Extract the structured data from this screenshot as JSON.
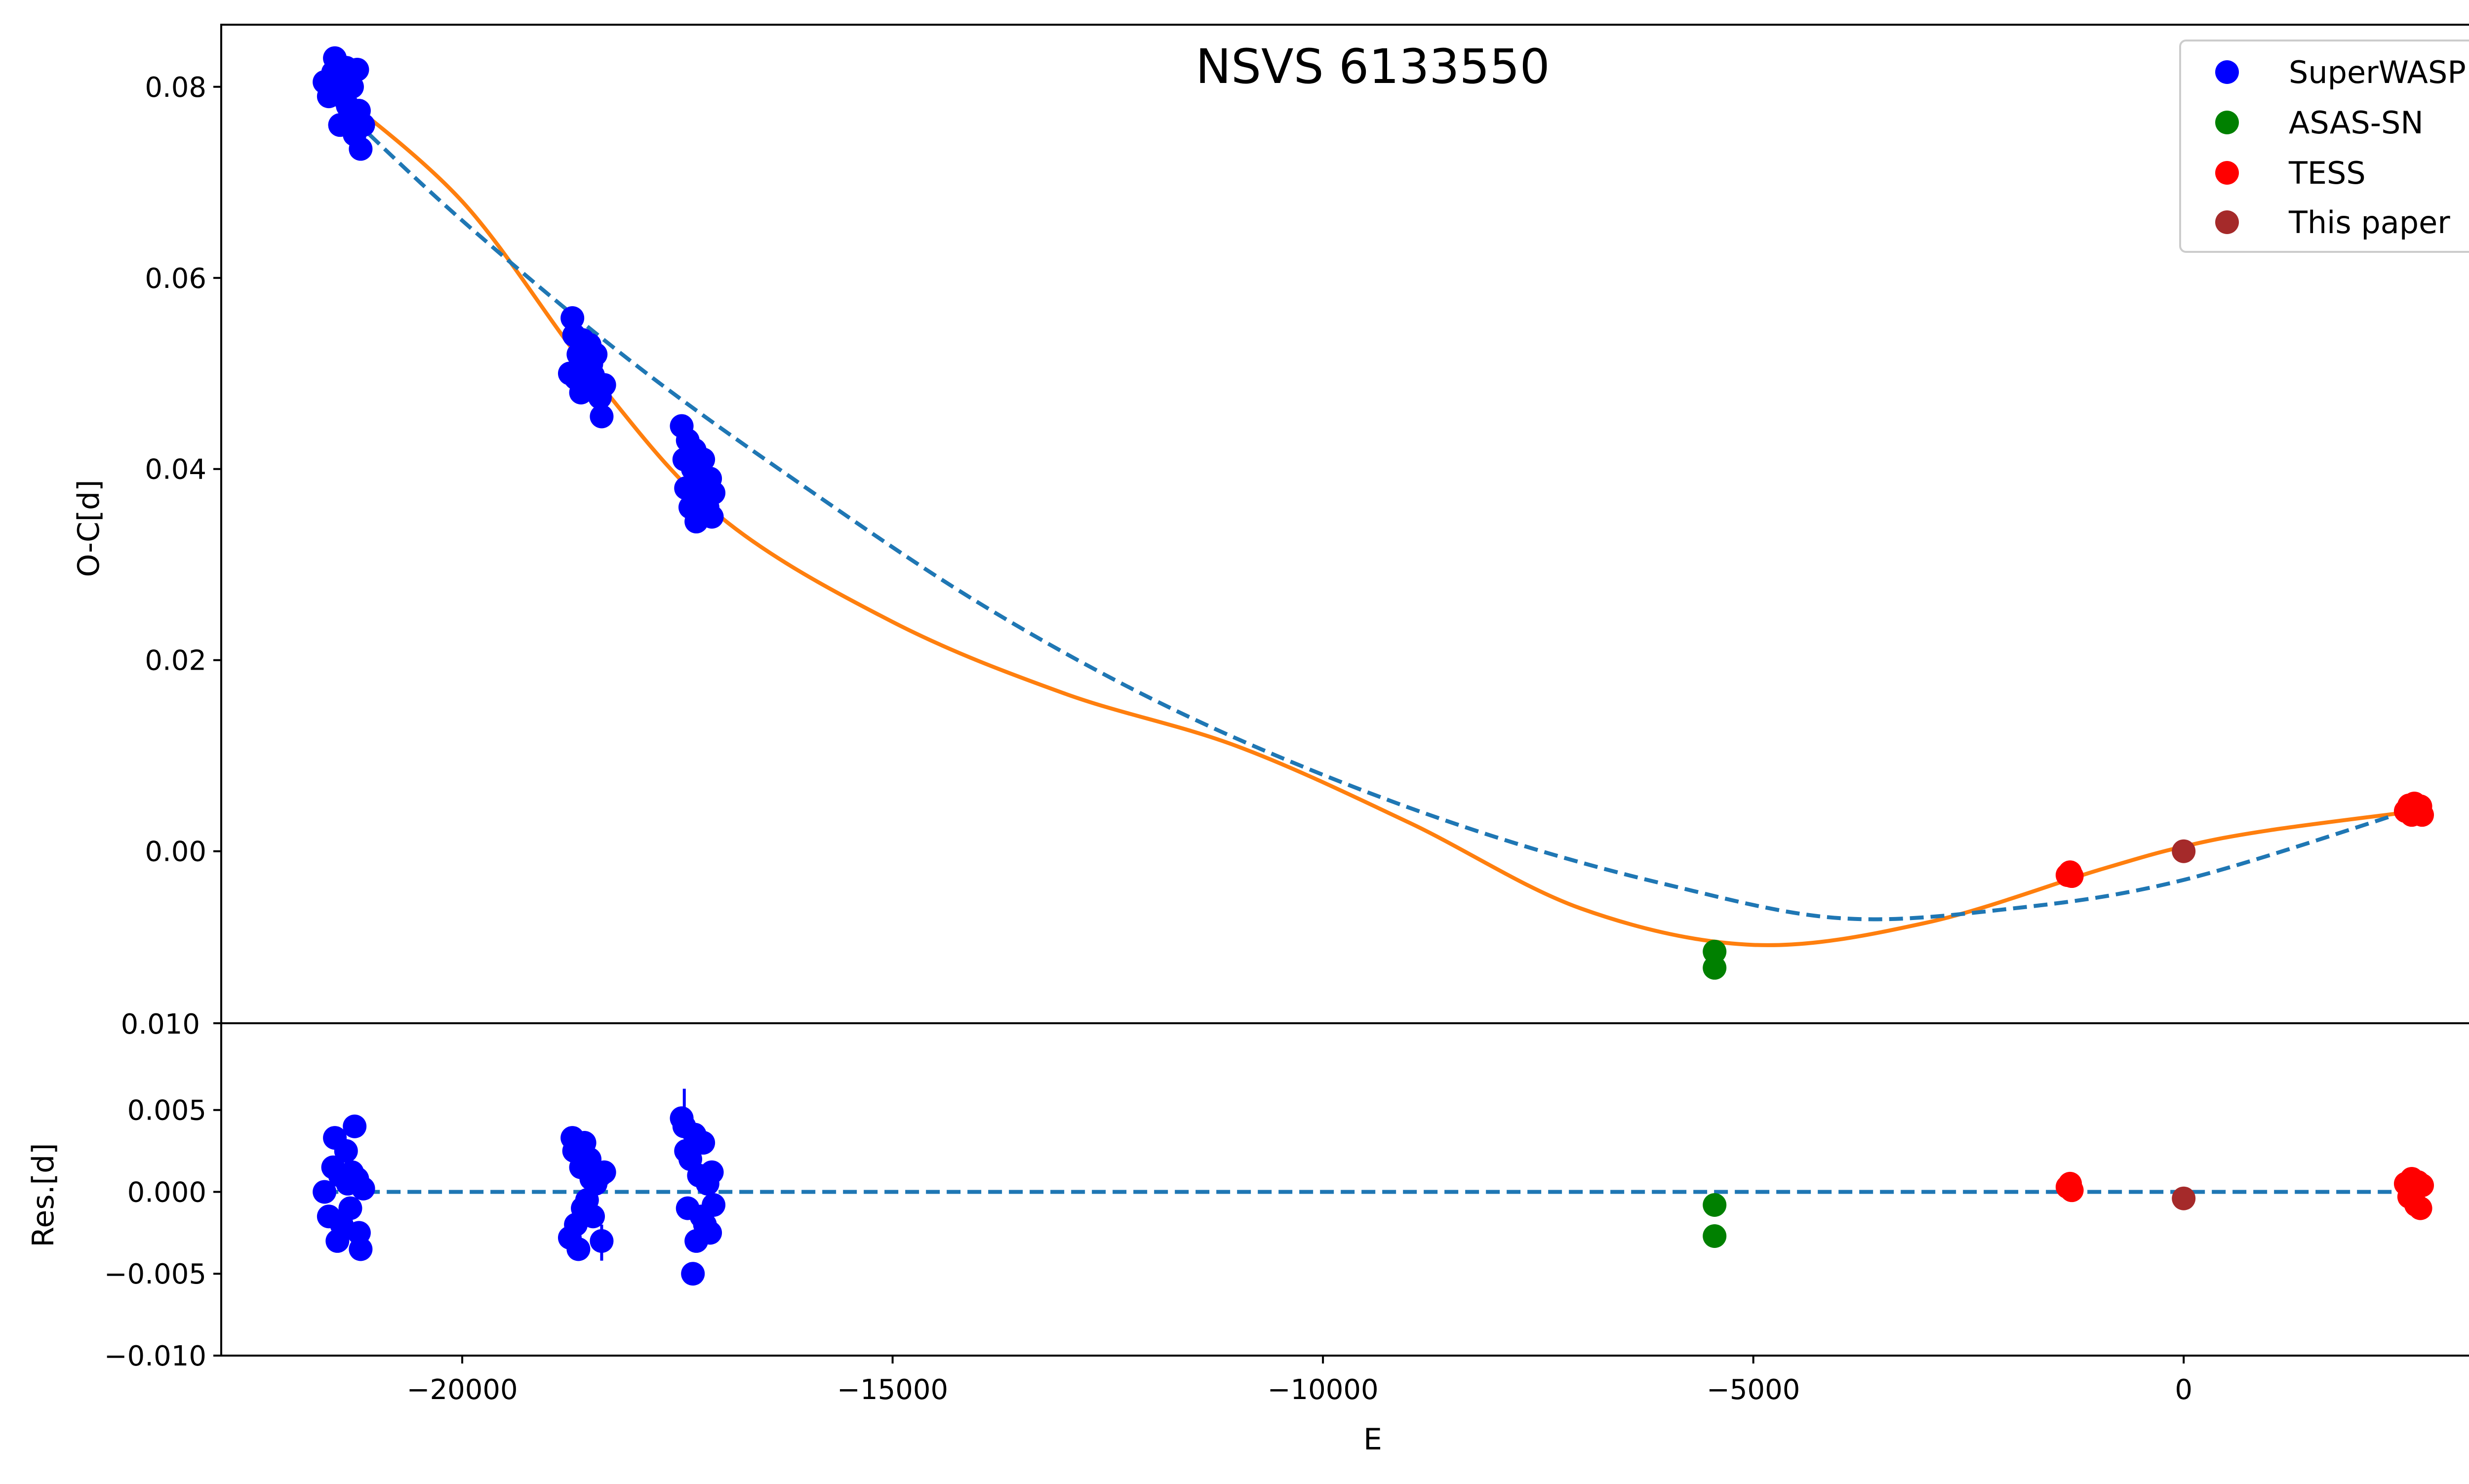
{
  "chart_data": {
    "type": "scatter",
    "title": "NSVS 6133550",
    "xlabel": "E",
    "top_panel": {
      "ylabel": "O-C[d]",
      "xlim": [
        -22800,
        3900
      ],
      "ylim": [
        -0.018,
        0.0865
      ],
      "yticks": [
        0.08,
        0.06,
        0.04,
        0.02,
        0.0
      ],
      "ytick_labels": [
        "0.08",
        "0.06",
        "0.04",
        "0.02",
        "0.00"
      ],
      "bottom_label": "0.010"
    },
    "bottom_panel": {
      "ylabel": "Res.[d]",
      "ylim": [
        -0.01,
        0.0103
      ],
      "yticks": [
        0.005,
        0.0,
        -0.005,
        -0.01
      ],
      "ytick_labels": [
        "0.005",
        "0.000",
        "−0.005",
        "−0.010"
      ]
    },
    "xticks": [
      -20000,
      -15000,
      -10000,
      -5000,
      0
    ],
    "xtick_labels": [
      "−20000",
      "−15000",
      "−10000",
      "−5000",
      "0"
    ],
    "legend": {
      "position": "top-right",
      "entries": [
        {
          "label": "SuperWASP",
          "color": "#0000ff"
        },
        {
          "label": "ASAS-SN",
          "color": "#008000"
        },
        {
          "label": "TESS",
          "color": "#ff0000"
        },
        {
          "label": "This paper",
          "color": "#a52a2a"
        }
      ]
    },
    "series": [
      {
        "name": "SuperWASP",
        "color": "#0000ff",
        "oc": [
          [
            -21600,
            0.0805
          ],
          [
            -21550,
            0.079
          ],
          [
            -21500,
            0.0815
          ],
          [
            -21480,
            0.083
          ],
          [
            -21450,
            0.08
          ],
          [
            -21420,
            0.076
          ],
          [
            -21400,
            0.079
          ],
          [
            -21350,
            0.082
          ],
          [
            -21330,
            0.078
          ],
          [
            -21300,
            0.077
          ],
          [
            -21280,
            0.08
          ],
          [
            -21250,
            0.075
          ],
          [
            -21220,
            0.0818
          ],
          [
            -21200,
            0.0775
          ],
          [
            -21180,
            0.0735
          ],
          [
            -21150,
            0.076
          ],
          [
            -18750,
            0.05
          ],
          [
            -18720,
            0.0558
          ],
          [
            -18700,
            0.054
          ],
          [
            -18680,
            0.0495
          ],
          [
            -18650,
            0.052
          ],
          [
            -18620,
            0.048
          ],
          [
            -18600,
            0.0535
          ],
          [
            -18580,
            0.0505
          ],
          [
            -18550,
            0.049
          ],
          [
            -18520,
            0.053
          ],
          [
            -18500,
            0.051
          ],
          [
            -18480,
            0.0498
          ],
          [
            -18450,
            0.052
          ],
          [
            -18400,
            0.0475
          ],
          [
            -18380,
            0.0455
          ],
          [
            -18350,
            0.0488
          ],
          [
            -17450,
            0.0445
          ],
          [
            -17420,
            0.041
          ],
          [
            -17400,
            0.038
          ],
          [
            -17380,
            0.043
          ],
          [
            -17350,
            0.036
          ],
          [
            -17320,
            0.04
          ],
          [
            -17300,
            0.042
          ],
          [
            -17280,
            0.0345
          ],
          [
            -17250,
            0.0395
          ],
          [
            -17220,
            0.037
          ],
          [
            -17200,
            0.041
          ],
          [
            -17180,
            0.038
          ],
          [
            -17150,
            0.036
          ],
          [
            -17120,
            0.039
          ],
          [
            -17100,
            0.035
          ],
          [
            -17080,
            0.0375
          ]
        ],
        "res": [
          [
            -21600,
            0.0
          ],
          [
            -21550,
            -0.0015
          ],
          [
            -21500,
            0.0015
          ],
          [
            -21480,
            0.0033
          ],
          [
            -21450,
            -0.003
          ],
          [
            -21420,
            0.001
          ],
          [
            -21400,
            -0.002
          ],
          [
            -21350,
            0.0025
          ],
          [
            -21330,
            0.0005
          ],
          [
            -21300,
            -0.001
          ],
          [
            -21280,
            0.0012
          ],
          [
            -21250,
            0.004
          ],
          [
            -21220,
            0.0008
          ],
          [
            -21200,
            -0.0025
          ],
          [
            -21180,
            -0.0035
          ],
          [
            -21150,
            0.0002
          ],
          [
            -18750,
            -0.0028
          ],
          [
            -18720,
            0.0033
          ],
          [
            -18700,
            0.0025
          ],
          [
            -18680,
            -0.002
          ],
          [
            -18650,
            -0.0035
          ],
          [
            -18620,
            0.0015
          ],
          [
            -18600,
            -0.001
          ],
          [
            -18580,
            0.003
          ],
          [
            -18550,
            -0.0005
          ],
          [
            -18520,
            0.002
          ],
          [
            -18500,
            0.0008
          ],
          [
            -18480,
            -0.0015
          ],
          [
            -18450,
            0.0005
          ],
          [
            -18400,
            0.001
          ],
          [
            -18380,
            -0.003
          ],
          [
            -18350,
            0.0012
          ],
          [
            -17450,
            0.0045
          ],
          [
            -17420,
            0.004
          ],
          [
            -17400,
            0.0025
          ],
          [
            -17380,
            -0.001
          ],
          [
            -17350,
            0.002
          ],
          [
            -17320,
            -0.005
          ],
          [
            -17300,
            0.0035
          ],
          [
            -17280,
            -0.003
          ],
          [
            -17250,
            0.001
          ],
          [
            -17220,
            -0.0015
          ],
          [
            -17200,
            0.003
          ],
          [
            -17180,
            -0.002
          ],
          [
            -17150,
            0.0005
          ],
          [
            -17120,
            -0.0025
          ],
          [
            -17100,
            0.0012
          ],
          [
            -17080,
            -0.0008
          ]
        ]
      },
      {
        "name": "ASAS-SN",
        "color": "#008000",
        "oc": [
          [
            -5450,
            -0.0105
          ],
          [
            -5450,
            -0.0122
          ]
        ],
        "res": [
          [
            -5450,
            -0.0008
          ],
          [
            -5450,
            -0.0027
          ]
        ]
      },
      {
        "name": "TESS",
        "color": "#ff0000",
        "oc": [
          [
            -1350,
            -0.0025
          ],
          [
            -1320,
            -0.0022
          ],
          [
            -1300,
            -0.0026
          ],
          [
            2580,
            0.0042
          ],
          [
            2620,
            0.0048
          ],
          [
            2650,
            0.0038
          ],
          [
            2680,
            0.005
          ],
          [
            2700,
            0.0045
          ],
          [
            2720,
            0.004
          ],
          [
            2750,
            0.0047
          ],
          [
            2770,
            0.0038
          ]
        ],
        "res": [
          [
            -1350,
            0.0003
          ],
          [
            -1320,
            0.0005
          ],
          [
            -1300,
            0.0001
          ],
          [
            2580,
            0.0005
          ],
          [
            2620,
            -0.0003
          ],
          [
            2650,
            0.0008
          ],
          [
            2680,
            0.0002
          ],
          [
            2700,
            -0.0008
          ],
          [
            2720,
            0.0006
          ],
          [
            2750,
            -0.001
          ],
          [
            2770,
            0.0004
          ]
        ]
      },
      {
        "name": "This paper",
        "color": "#a52a2a",
        "oc": [
          [
            0,
            0.0
          ]
        ],
        "res": [
          [
            0,
            -0.0004
          ]
        ]
      }
    ],
    "fit_curves": [
      {
        "name": "quadratic+LTTE fit (solid)",
        "style": "solid",
        "color": "#ff7f0e",
        "points": [
          [
            -21600,
            0.0805
          ],
          [
            -20000,
            0.068
          ],
          [
            -18500,
            0.05
          ],
          [
            -17000,
            0.035
          ],
          [
            -15000,
            0.024
          ],
          [
            -13000,
            0.0165
          ],
          [
            -11000,
            0.011
          ],
          [
            -9000,
            0.003
          ],
          [
            -7000,
            -0.006
          ],
          [
            -5000,
            -0.0098
          ],
          [
            -3000,
            -0.0075
          ],
          [
            -1000,
            -0.002
          ],
          [
            0,
            0.0005
          ],
          [
            1000,
            0.0022
          ],
          [
            2700,
            0.0042
          ]
        ]
      },
      {
        "name": "quadratic fit (dashed)",
        "style": "dashed",
        "color": "#1f77b4",
        "points": [
          [
            -21600,
            0.0795
          ],
          [
            -20000,
            0.066
          ],
          [
            -18000,
            0.051
          ],
          [
            -16000,
            0.038
          ],
          [
            -14000,
            0.026
          ],
          [
            -12000,
            0.016
          ],
          [
            -10000,
            0.008
          ],
          [
            -8000,
            0.0015
          ],
          [
            -6000,
            -0.0035
          ],
          [
            -4000,
            -0.007
          ],
          [
            -2000,
            -0.006
          ],
          [
            0,
            -0.003
          ],
          [
            2700,
            0.0045
          ]
        ]
      }
    ],
    "residual_baseline": {
      "y": 0.0,
      "style": "dashed",
      "color": "#1f77b4"
    }
  }
}
